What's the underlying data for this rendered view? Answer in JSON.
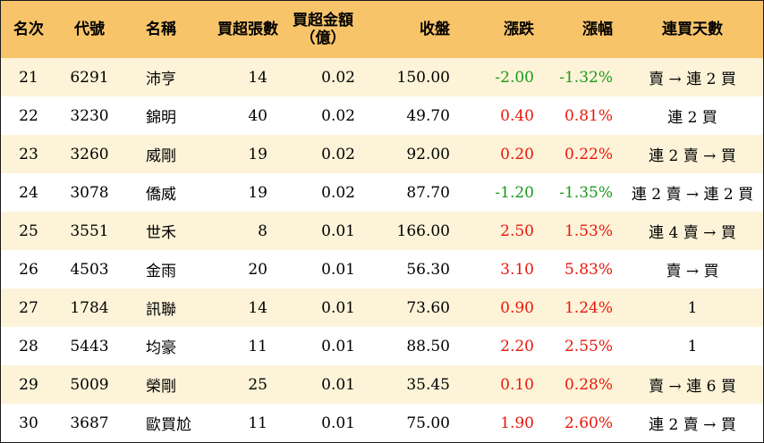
{
  "colors": {
    "header_bg": "#f7c46a",
    "odd_row_bg": "#fdf3d8",
    "even_row_bg": "#ffffff",
    "up": "#e8170b",
    "down": "#1a9a1a"
  },
  "headers": {
    "rank": "名次",
    "code": "代號",
    "name": "名稱",
    "net_buy_lots": "買超張數",
    "net_buy_amount_line1": "買超金額",
    "net_buy_amount_line2": "（億）",
    "close": "收盤",
    "change": "漲跌",
    "change_pct": "漲幅",
    "consec_days": "連買天數"
  },
  "rows": [
    {
      "rank": "21",
      "code": "6291",
      "name": "沛亨",
      "lots": "14",
      "amount": "0.02",
      "close": "150.00",
      "change": "-2.00",
      "change_pct": "-1.32%",
      "trend": "down",
      "days": "賣 → 連 2 買"
    },
    {
      "rank": "22",
      "code": "3230",
      "name": "錦明",
      "lots": "40",
      "amount": "0.02",
      "close": "49.70",
      "change": "0.40",
      "change_pct": "0.81%",
      "trend": "up",
      "days": "連 2 買"
    },
    {
      "rank": "23",
      "code": "3260",
      "name": "威剛",
      "lots": "19",
      "amount": "0.02",
      "close": "92.00",
      "change": "0.20",
      "change_pct": "0.22%",
      "trend": "up",
      "days": "連 2 賣 → 買"
    },
    {
      "rank": "24",
      "code": "3078",
      "name": "僑威",
      "lots": "19",
      "amount": "0.02",
      "close": "87.70",
      "change": "-1.20",
      "change_pct": "-1.35%",
      "trend": "down",
      "days": "連 2 賣 → 連 2 買"
    },
    {
      "rank": "25",
      "code": "3551",
      "name": "世禾",
      "lots": "8",
      "amount": "0.01",
      "close": "166.00",
      "change": "2.50",
      "change_pct": "1.53%",
      "trend": "up",
      "days": "連 4 賣 → 買"
    },
    {
      "rank": "26",
      "code": "4503",
      "name": "金雨",
      "lots": "20",
      "amount": "0.01",
      "close": "56.30",
      "change": "3.10",
      "change_pct": "5.83%",
      "trend": "up",
      "days": "賣 → 買"
    },
    {
      "rank": "27",
      "code": "1784",
      "name": "訊聯",
      "lots": "14",
      "amount": "0.01",
      "close": "73.60",
      "change": "0.90",
      "change_pct": "1.24%",
      "trend": "up",
      "days": "1"
    },
    {
      "rank": "28",
      "code": "5443",
      "name": "均豪",
      "lots": "11",
      "amount": "0.01",
      "close": "88.50",
      "change": "2.20",
      "change_pct": "2.55%",
      "trend": "up",
      "days": "1"
    },
    {
      "rank": "29",
      "code": "5009",
      "name": "榮剛",
      "lots": "25",
      "amount": "0.01",
      "close": "35.45",
      "change": "0.10",
      "change_pct": "0.28%",
      "trend": "up",
      "days": "賣 → 連 6 買"
    },
    {
      "rank": "30",
      "code": "3687",
      "name": "歐買尬",
      "lots": "11",
      "amount": "0.01",
      "close": "75.00",
      "change": "1.90",
      "change_pct": "2.60%",
      "trend": "up",
      "days": "連 2 賣 → 買"
    }
  ]
}
